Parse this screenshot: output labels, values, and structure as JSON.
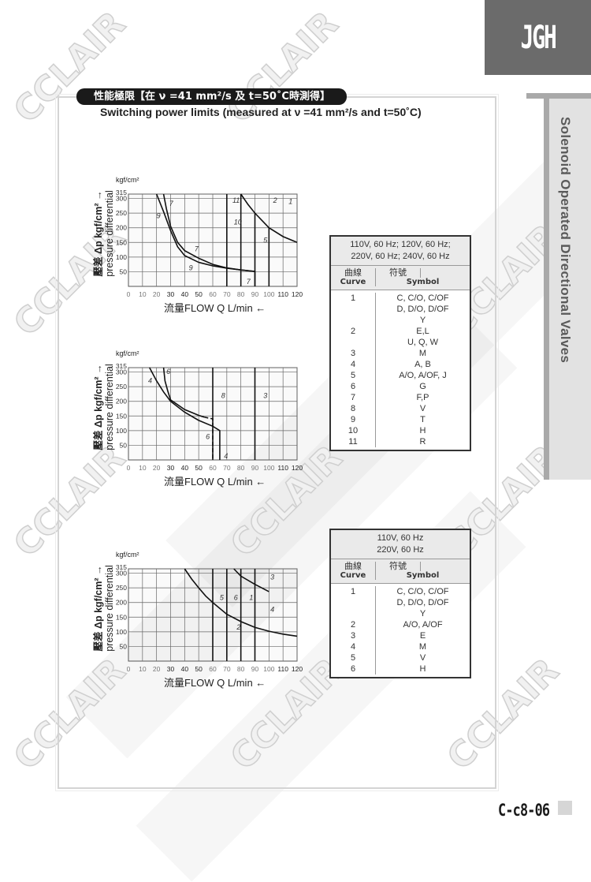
{
  "brand": {
    "logo_text": "JGH",
    "section_title": "Solenoid Operated Directional Valves",
    "page_number": "C-c8-06",
    "watermark": "CCLAIR"
  },
  "header": {
    "title_zh": "性能極限【在 ν =41 mm²/s 及 t=50˚C時測得】",
    "subtitle": "Switching power limits  (measured at ν =41 mm²/s and t=50˚C)"
  },
  "axis_labels": {
    "unit": "kgf/cm²",
    "ylabel_zh": "壓差 Δp kgf/cm² →",
    "ylabel_en": "pressure differential",
    "xlabel": "流量FLOW  Q  L/min  ←"
  },
  "chart_data": [
    {
      "type": "line",
      "xlabel": "流量FLOW Q L/min",
      "ylabel": "壓差 Δp kgf/cm² pressure differential",
      "xlim": [
        0,
        120
      ],
      "ylim": [
        0,
        315
      ],
      "xticks": [
        0,
        10,
        20,
        30,
        40,
        50,
        60,
        70,
        80,
        90,
        100,
        110,
        120
      ],
      "yticks": [
        50,
        100,
        150,
        200,
        250,
        300,
        315
      ],
      "grid": true,
      "series": [
        {
          "name": "9",
          "points": [
            [
              20,
              315
            ],
            [
              25,
              255
            ],
            [
              30,
              190
            ],
            [
              35,
              135
            ],
            [
              40,
              105
            ],
            [
              50,
              82
            ],
            [
              60,
              70
            ],
            [
              70,
              62
            ],
            [
              80,
              56
            ],
            [
              90,
              51
            ]
          ]
        },
        {
          "name": "7",
          "points": [
            [
              25,
              315
            ],
            [
              27,
              265
            ],
            [
              30,
              205
            ],
            [
              35,
              150
            ],
            [
              40,
              122
            ],
            [
              50,
              96
            ],
            [
              60,
              75
            ],
            [
              70,
              63
            ],
            [
              80,
              56
            ],
            [
              90,
              51
            ],
            [
              90,
              0
            ]
          ]
        },
        {
          "name": "10",
          "points": [
            [
              70,
              315
            ],
            [
              70,
              0
            ]
          ]
        },
        {
          "name": "11",
          "points": [
            [
              80,
              315
            ],
            [
              80,
              0
            ]
          ]
        },
        {
          "name": "2",
          "points": [
            [
              80,
              315
            ],
            [
              85,
              280
            ],
            [
              90,
              250
            ],
            [
              100,
              200
            ],
            [
              110,
              170
            ],
            [
              120,
              150
            ]
          ]
        },
        {
          "name": "1",
          "points": [
            [
              90,
              250
            ],
            [
              90,
              0
            ]
          ]
        },
        {
          "name": "5",
          "points": [
            [
              100,
              200
            ],
            [
              100,
              0
            ]
          ]
        }
      ],
      "labels": [
        {
          "text": "7",
          "at": [
            29,
            275
          ]
        },
        {
          "text": "9",
          "at": [
            20,
            233
          ]
        },
        {
          "text": "7",
          "at": [
            47,
            120
          ]
        },
        {
          "text": "9",
          "at": [
            43,
            55
          ]
        },
        {
          "text": "7",
          "at": [
            84,
            8
          ]
        },
        {
          "text": "11",
          "at": [
            74,
            285
          ]
        },
        {
          "text": "10",
          "at": [
            75,
            212
          ]
        },
        {
          "text": "2",
          "at": [
            103,
            285
          ]
        },
        {
          "text": "1",
          "at": [
            114,
            282
          ]
        },
        {
          "text": "5",
          "at": [
            96,
            150
          ]
        }
      ]
    },
    {
      "type": "line",
      "xlabel": "流量FLOW Q L/min",
      "ylabel": "壓差 Δp kgf/cm² pressure differential",
      "xlim": [
        0,
        120
      ],
      "ylim": [
        0,
        315
      ],
      "xticks": [
        0,
        10,
        20,
        30,
        40,
        50,
        60,
        70,
        80,
        90,
        100,
        110,
        120
      ],
      "yticks": [
        50,
        100,
        150,
        200,
        250,
        300,
        315
      ],
      "grid": true,
      "series": [
        {
          "name": "4",
          "points": [
            [
              15,
              315
            ],
            [
              20,
              270
            ],
            [
              25,
              232
            ],
            [
              30,
              200
            ],
            [
              40,
              163
            ],
            [
              50,
              135
            ],
            [
              60,
              115
            ],
            [
              65,
              100
            ],
            [
              65,
              0
            ]
          ]
        },
        {
          "name": "6",
          "points": [
            [
              25,
              315
            ],
            [
              26,
              270
            ],
            [
              28,
              235
            ],
            [
              30,
              205
            ],
            [
              40,
              172
            ],
            [
              50,
              152
            ],
            [
              54,
              146
            ]
          ]
        },
        {
          "name": "6",
          "dashed": true,
          "points": [
            [
              54,
              146
            ],
            [
              60,
              140
            ],
            [
              60,
              0
            ]
          ]
        },
        {
          "name": "8",
          "points": [
            [
              60,
              315
            ],
            [
              60,
              0
            ]
          ]
        },
        {
          "name": "3",
          "points": [
            [
              90,
              315
            ],
            [
              90,
              0
            ]
          ]
        }
      ],
      "labels": [
        {
          "text": "4",
          "at": [
            14,
            262
          ]
        },
        {
          "text": "6",
          "at": [
            27,
            293
          ]
        },
        {
          "text": "8",
          "at": [
            66,
            212
          ]
        },
        {
          "text": "3",
          "at": [
            96,
            212
          ]
        },
        {
          "text": "6",
          "at": [
            55,
            72
          ]
        },
        {
          "text": "4",
          "at": [
            68,
            5
          ]
        }
      ]
    },
    {
      "type": "line",
      "xlabel": "流量FLOW Q L/min",
      "ylabel": "壓差 Δp kgf/cm² pressure differential",
      "xlim": [
        0,
        120
      ],
      "ylim": [
        0,
        315
      ],
      "xticks": [
        0,
        10,
        20,
        30,
        40,
        50,
        60,
        70,
        80,
        90,
        100,
        110,
        120
      ],
      "yticks": [
        50,
        100,
        150,
        200,
        250,
        300,
        315
      ],
      "grid": true,
      "series": [
        {
          "name": "2",
          "points": [
            [
              40,
              315
            ],
            [
              45,
              280
            ],
            [
              50,
              250
            ],
            [
              55,
              222
            ],
            [
              60,
              200
            ],
            [
              70,
              160
            ],
            [
              80,
              135
            ],
            [
              90,
              115
            ],
            [
              100,
              102
            ],
            [
              110,
              92
            ],
            [
              120,
              85
            ]
          ]
        },
        {
          "name": "3",
          "points": [
            [
              75,
              315
            ],
            [
              80,
              290
            ],
            [
              90,
              262
            ],
            [
              100,
              237
            ]
          ]
        },
        {
          "name": "5",
          "points": [
            [
              60,
              315
            ],
            [
              60,
              0
            ]
          ]
        },
        {
          "name": "6",
          "points": [
            [
              70,
              315
            ],
            [
              70,
              0
            ]
          ]
        },
        {
          "name": "1",
          "points": [
            [
              80,
              315
            ],
            [
              80,
              0
            ]
          ]
        },
        {
          "name": "4",
          "points": [
            [
              90,
              315
            ],
            [
              90,
              0
            ]
          ]
        }
      ],
      "labels": [
        {
          "text": "5",
          "at": [
            65,
            208
          ]
        },
        {
          "text": "6",
          "at": [
            75,
            208
          ]
        },
        {
          "text": "1",
          "at": [
            86,
            208
          ]
        },
        {
          "text": "4",
          "at": [
            101,
            168
          ]
        },
        {
          "text": "3",
          "at": [
            101,
            278
          ]
        },
        {
          "text": "2",
          "at": [
            77,
            108
          ]
        }
      ]
    }
  ],
  "tables": [
    {
      "condition": [
        "110V, 60 Hz; 120V, 60 Hz;",
        "220V, 60 Hz; 240V, 60 Hz"
      ],
      "head_curve_zh": "曲線",
      "head_curve_en": "Curve",
      "head_symbol_zh": "符號",
      "head_symbol_en": "Symbol",
      "rows": [
        {
          "curve": "1",
          "symbol": "C, C/O, C/OF"
        },
        {
          "curve": "",
          "symbol": "D, D/O, D/OF"
        },
        {
          "curve": "",
          "symbol": "Y"
        },
        {
          "curve": "2",
          "symbol": "E,L"
        },
        {
          "curve": "",
          "symbol": "U, Q, W"
        },
        {
          "curve": "3",
          "symbol": "M"
        },
        {
          "curve": "4",
          "symbol": "A, B"
        },
        {
          "curve": "5",
          "symbol": "A/O, A/OF, J"
        },
        {
          "curve": "6",
          "symbol": "G"
        },
        {
          "curve": "7",
          "symbol": "F,P"
        },
        {
          "curve": "8",
          "symbol": "V"
        },
        {
          "curve": "9",
          "symbol": "T"
        },
        {
          "curve": "10",
          "symbol": "H"
        },
        {
          "curve": "11",
          "symbol": "R"
        }
      ]
    },
    {
      "condition": [
        "110V, 60 Hz",
        "220V, 60 Hz"
      ],
      "head_curve_zh": "曲線",
      "head_curve_en": "Curve",
      "head_symbol_zh": "符號",
      "head_symbol_en": "Symbol",
      "rows": [
        {
          "curve": "1",
          "symbol": "C, C/O, C/OF"
        },
        {
          "curve": "",
          "symbol": "D, D/O, D/OF"
        },
        {
          "curve": "",
          "symbol": "Y"
        },
        {
          "curve": "2",
          "symbol": "A/O, A/OF"
        },
        {
          "curve": "3",
          "symbol": "E"
        },
        {
          "curve": "4",
          "symbol": "M"
        },
        {
          "curve": "5",
          "symbol": "V"
        },
        {
          "curve": "6",
          "symbol": "H"
        }
      ]
    }
  ]
}
